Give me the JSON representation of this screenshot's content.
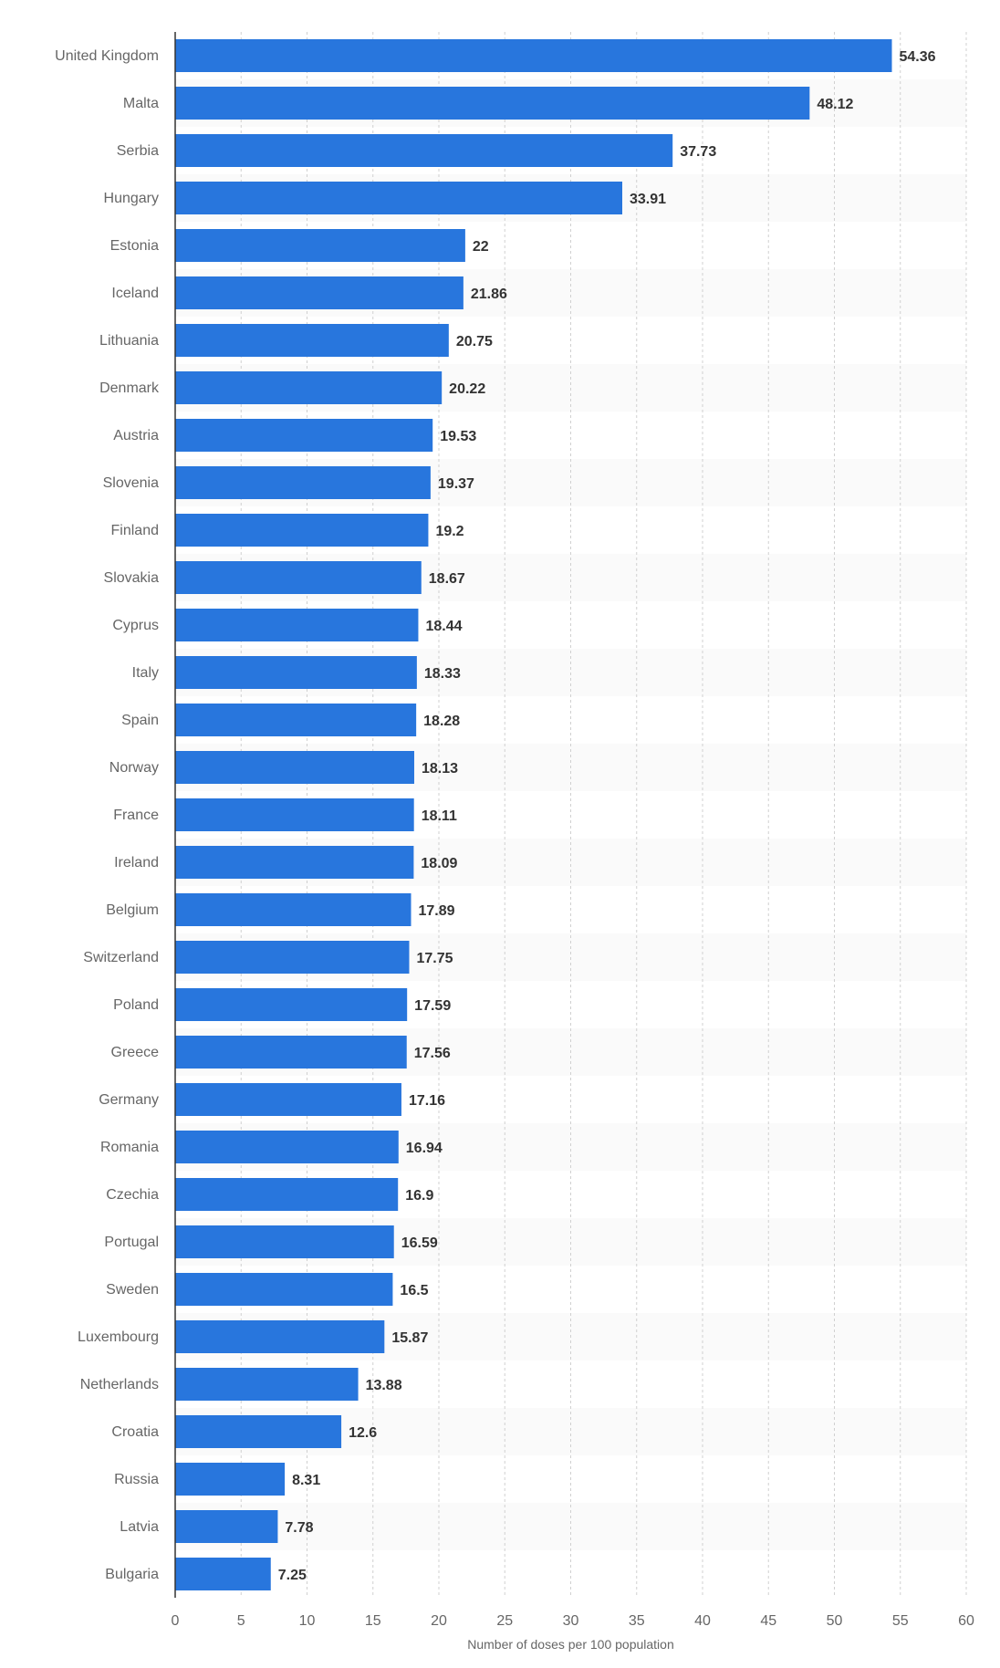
{
  "chart_data": {
    "type": "bar",
    "orientation": "horizontal",
    "title": "",
    "xlabel": "Number of doses per 100 population",
    "ylabel": "",
    "xlim": [
      0,
      60
    ],
    "xticks": [
      0,
      5,
      10,
      15,
      20,
      25,
      30,
      35,
      40,
      45,
      50,
      55,
      60
    ],
    "grid": true,
    "bar_color": "#2876dd",
    "categories": [
      "United Kingdom",
      "Malta",
      "Serbia",
      "Hungary",
      "Estonia",
      "Iceland",
      "Lithuania",
      "Denmark",
      "Austria",
      "Slovenia",
      "Finland",
      "Slovakia",
      "Cyprus",
      "Italy",
      "Spain",
      "Norway",
      "France",
      "Ireland",
      "Belgium",
      "Switzerland",
      "Poland",
      "Greece",
      "Germany",
      "Romania",
      "Czechia",
      "Portugal",
      "Sweden",
      "Luxembourg",
      "Netherlands",
      "Croatia",
      "Russia",
      "Latvia",
      "Bulgaria"
    ],
    "values": [
      54.36,
      48.12,
      37.73,
      33.91,
      22,
      21.86,
      20.75,
      20.22,
      19.53,
      19.37,
      19.2,
      18.67,
      18.44,
      18.33,
      18.28,
      18.13,
      18.11,
      18.09,
      17.89,
      17.75,
      17.59,
      17.56,
      17.16,
      16.94,
      16.9,
      16.59,
      16.5,
      15.87,
      13.88,
      12.6,
      8.31,
      7.78,
      7.25
    ]
  }
}
